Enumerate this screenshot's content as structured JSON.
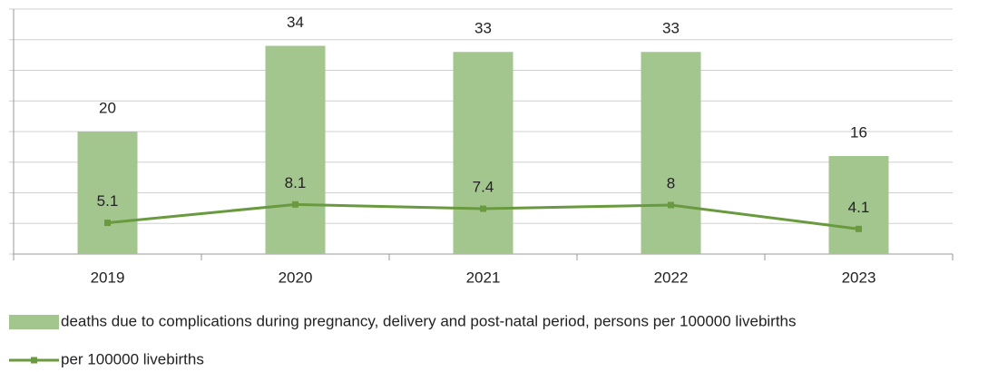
{
  "chart_data": {
    "type": "bar-line",
    "categories": [
      "2019",
      "2020",
      "2021",
      "2022",
      "2023"
    ],
    "series": [
      {
        "name": "deaths due to complications during pregnancy, delivery and post-natal period, persons per 100000 livebirths",
        "type": "bar",
        "color": "#a3c68f",
        "values": [
          20,
          34,
          33,
          33,
          16
        ]
      },
      {
        "name": "per 100000 livebirths",
        "type": "line",
        "color": "#6a9a3f",
        "values": [
          5.1,
          8.1,
          7.4,
          8,
          4.1
        ]
      }
    ],
    "ylim": [
      0,
      40
    ],
    "yticks": [
      0,
      5,
      10,
      15,
      20,
      25,
      30,
      35,
      40
    ],
    "grid": true
  }
}
